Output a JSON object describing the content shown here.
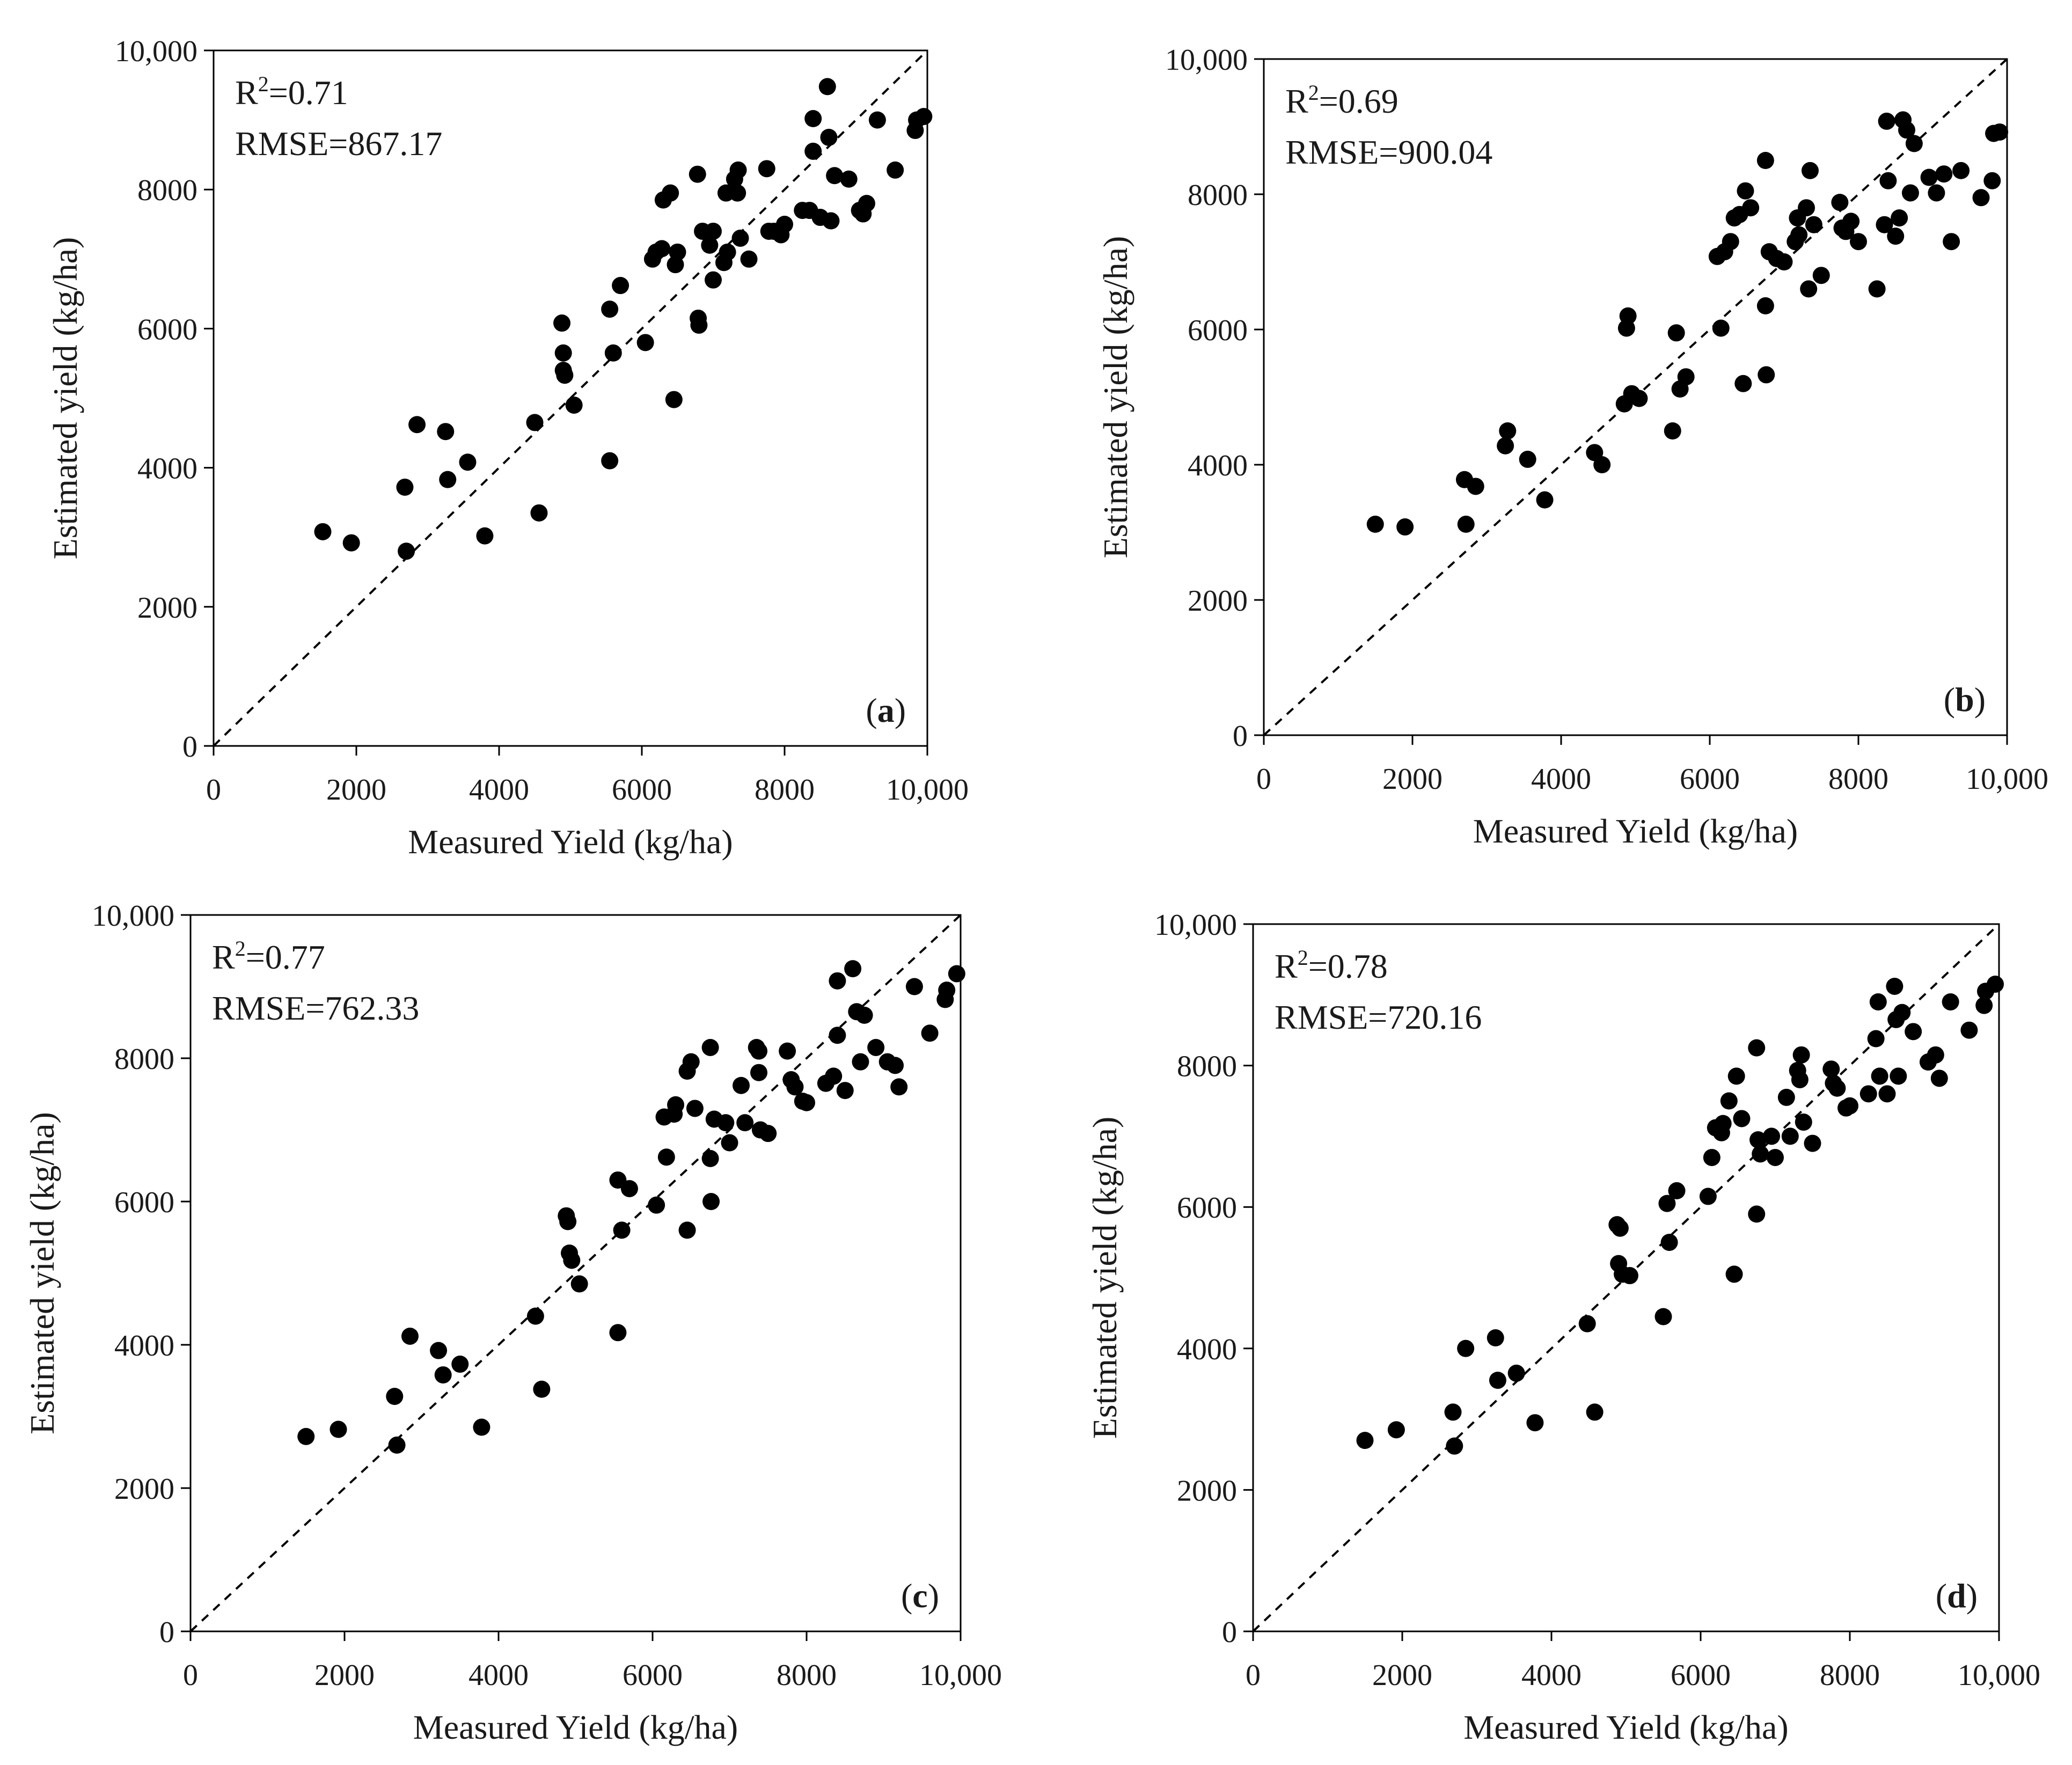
{
  "chart_data": [
    {
      "type": "scatter",
      "panel_label": "a",
      "stats": {
        "r2_prefix": "R",
        "r2_sup": "2",
        "r2_value": "=0.71",
        "rmse": "RMSE=867.17"
      },
      "xlabel": "Measured Yield (kg/ha)",
      "ylabel": "Estimated yield (kg/ha)",
      "xlim": [
        0,
        10000
      ],
      "ylim": [
        0,
        10000
      ],
      "x_ticks": [
        0,
        2000,
        4000,
        6000,
        8000,
        10000
      ],
      "x_tick_labels": [
        "0",
        "2000",
        "4000",
        "6000",
        "8000",
        "10,000"
      ],
      "y_ticks": [
        0,
        2000,
        4000,
        6000,
        8000,
        10000
      ],
      "y_tick_labels": [
        "0",
        "2000",
        "4000",
        "6000",
        "8000",
        "10,000"
      ],
      "reference_line": "1:1 dashed",
      "grid": false,
      "points": [
        [
          1530,
          3080
        ],
        [
          1930,
          2920
        ],
        [
          2680,
          3720
        ],
        [
          2700,
          2800
        ],
        [
          2850,
          4620
        ],
        [
          3250,
          4520
        ],
        [
          3280,
          3830
        ],
        [
          3560,
          4080
        ],
        [
          3800,
          3020
        ],
        [
          4500,
          4650
        ],
        [
          4560,
          3350
        ],
        [
          4880,
          6080
        ],
        [
          4900,
          5650
        ],
        [
          4900,
          5400
        ],
        [
          4920,
          5330
        ],
        [
          5050,
          4900
        ],
        [
          5550,
          6280
        ],
        [
          5550,
          4100
        ],
        [
          5600,
          5650
        ],
        [
          5700,
          6620
        ],
        [
          6050,
          5800
        ],
        [
          6150,
          7000
        ],
        [
          6200,
          7100
        ],
        [
          6280,
          7150
        ],
        [
          6300,
          7850
        ],
        [
          6400,
          7950
        ],
        [
          6450,
          4980
        ],
        [
          6470,
          6920
        ],
        [
          6500,
          7100
        ],
        [
          6780,
          8220
        ],
        [
          6790,
          6150
        ],
        [
          6800,
          6050
        ],
        [
          6850,
          7400
        ],
        [
          6950,
          7200
        ],
        [
          7000,
          7400
        ],
        [
          7000,
          6700
        ],
        [
          7150,
          6950
        ],
        [
          7180,
          7950
        ],
        [
          7200,
          7100
        ],
        [
          7300,
          8150
        ],
        [
          7340,
          7950
        ],
        [
          7350,
          8280
        ],
        [
          7380,
          7300
        ],
        [
          7500,
          7000
        ],
        [
          7750,
          8300
        ],
        [
          7780,
          7400
        ],
        [
          7850,
          7400
        ],
        [
          7950,
          7350
        ],
        [
          8000,
          7500
        ],
        [
          8250,
          7700
        ],
        [
          8350,
          7700
        ],
        [
          8400,
          9020
        ],
        [
          8400,
          8550
        ],
        [
          8500,
          7600
        ],
        [
          8600,
          9480
        ],
        [
          8620,
          8750
        ],
        [
          8650,
          7550
        ],
        [
          8700,
          8200
        ],
        [
          8900,
          8150
        ],
        [
          9050,
          7700
        ],
        [
          9100,
          7650
        ],
        [
          9150,
          7800
        ],
        [
          9300,
          9000
        ],
        [
          9550,
          8280
        ],
        [
          9830,
          8850
        ],
        [
          9850,
          9000
        ],
        [
          9950,
          9050
        ]
      ]
    },
    {
      "type": "scatter",
      "panel_label": "b",
      "stats": {
        "r2_prefix": "R",
        "r2_sup": "2",
        "r2_value": "=0.69",
        "rmse": "RMSE=900.04"
      },
      "xlabel": "Measured Yield (kg/ha)",
      "ylabel": "Estimated yield (kg/ha)",
      "xlim": [
        0,
        10000
      ],
      "ylim": [
        0,
        10000
      ],
      "x_ticks": [
        0,
        2000,
        4000,
        6000,
        8000,
        10000
      ],
      "x_tick_labels": [
        "0",
        "2000",
        "4000",
        "6000",
        "8000",
        "10,000"
      ],
      "y_ticks": [
        0,
        2000,
        4000,
        6000,
        8000,
        10000
      ],
      "y_tick_labels": [
        "0",
        "2000",
        "4000",
        "6000",
        "8000",
        "10,000"
      ],
      "reference_line": "1:1 dashed",
      "grid": false,
      "points": [
        [
          1500,
          3120
        ],
        [
          1900,
          3080
        ],
        [
          2700,
          3780
        ],
        [
          2720,
          3120
        ],
        [
          2850,
          3680
        ],
        [
          3250,
          4280
        ],
        [
          3280,
          4500
        ],
        [
          3550,
          4080
        ],
        [
          3780,
          3480
        ],
        [
          4450,
          4180
        ],
        [
          4550,
          4000
        ],
        [
          4850,
          4900
        ],
        [
          4880,
          6020
        ],
        [
          4900,
          6200
        ],
        [
          4950,
          5050
        ],
        [
          5050,
          4980
        ],
        [
          5500,
          4500
        ],
        [
          5550,
          5950
        ],
        [
          5600,
          5120
        ],
        [
          5680,
          5300
        ],
        [
          6100,
          7080
        ],
        [
          6150,
          6020
        ],
        [
          6200,
          7150
        ],
        [
          6280,
          7300
        ],
        [
          6330,
          7650
        ],
        [
          6400,
          7700
        ],
        [
          6450,
          5200
        ],
        [
          6480,
          8050
        ],
        [
          6550,
          7800
        ],
        [
          6750,
          8500
        ],
        [
          6750,
          6350
        ],
        [
          6760,
          5330
        ],
        [
          6800,
          7150
        ],
        [
          6900,
          7050
        ],
        [
          7000,
          7000
        ],
        [
          7150,
          7300
        ],
        [
          7180,
          7650
        ],
        [
          7200,
          7400
        ],
        [
          7300,
          7800
        ],
        [
          7330,
          6600
        ],
        [
          7350,
          8350
        ],
        [
          7400,
          7550
        ],
        [
          7500,
          6800
        ],
        [
          7750,
          7880
        ],
        [
          7780,
          7500
        ],
        [
          7830,
          7450
        ],
        [
          7900,
          7600
        ],
        [
          8000,
          7300
        ],
        [
          8250,
          6600
        ],
        [
          8350,
          7550
        ],
        [
          8380,
          9080
        ],
        [
          8400,
          8200
        ],
        [
          8500,
          7380
        ],
        [
          8550,
          7650
        ],
        [
          8600,
          9100
        ],
        [
          8650,
          8950
        ],
        [
          8700,
          8020
        ],
        [
          8750,
          8750
        ],
        [
          8950,
          8250
        ],
        [
          9050,
          8020
        ],
        [
          9150,
          8300
        ],
        [
          9250,
          7300
        ],
        [
          9380,
          8350
        ],
        [
          9650,
          7950
        ],
        [
          9800,
          8200
        ],
        [
          9820,
          8900
        ],
        [
          9900,
          8920
        ]
      ]
    },
    {
      "type": "scatter",
      "panel_label": "c",
      "stats": {
        "r2_prefix": "R",
        "r2_sup": "2",
        "r2_value": "=0.77",
        "rmse": "RMSE=762.33"
      },
      "xlabel": "Measured Yield (kg/ha)",
      "ylabel": "Estimated yield (kg/ha)",
      "xlim": [
        0,
        10000
      ],
      "ylim": [
        0,
        10000
      ],
      "x_ticks": [
        0,
        2000,
        4000,
        6000,
        8000,
        10000
      ],
      "x_tick_labels": [
        "0",
        "2000",
        "4000",
        "6000",
        "8000",
        "10,000"
      ],
      "y_ticks": [
        0,
        2000,
        4000,
        6000,
        8000,
        10000
      ],
      "y_tick_labels": [
        "0",
        "2000",
        "4000",
        "6000",
        "8000",
        "10,000"
      ],
      "reference_line": "1:1 dashed",
      "grid": false,
      "points": [
        [
          1500,
          2720
        ],
        [
          1920,
          2820
        ],
        [
          2650,
          3280
        ],
        [
          2680,
          2600
        ],
        [
          2850,
          4120
        ],
        [
          3220,
          3920
        ],
        [
          3280,
          3580
        ],
        [
          3500,
          3730
        ],
        [
          3780,
          2850
        ],
        [
          4480,
          4400
        ],
        [
          4560,
          3380
        ],
        [
          4880,
          5800
        ],
        [
          4900,
          5720
        ],
        [
          4920,
          5280
        ],
        [
          4950,
          5180
        ],
        [
          5050,
          4850
        ],
        [
          5550,
          6300
        ],
        [
          5550,
          4170
        ],
        [
          5600,
          5600
        ],
        [
          5700,
          6180
        ],
        [
          6050,
          5950
        ],
        [
          6150,
          7180
        ],
        [
          6180,
          6620
        ],
        [
          6280,
          7220
        ],
        [
          6300,
          7350
        ],
        [
          6450,
          7820
        ],
        [
          6450,
          5600
        ],
        [
          6500,
          7950
        ],
        [
          6550,
          7300
        ],
        [
          6750,
          8150
        ],
        [
          6750,
          6600
        ],
        [
          6760,
          6000
        ],
        [
          6800,
          7150
        ],
        [
          6950,
          7100
        ],
        [
          7000,
          6820
        ],
        [
          7150,
          7620
        ],
        [
          7200,
          7100
        ],
        [
          7350,
          8150
        ],
        [
          7380,
          8100
        ],
        [
          7380,
          7800
        ],
        [
          7400,
          7000
        ],
        [
          7500,
          6950
        ],
        [
          7750,
          8100
        ],
        [
          7800,
          7700
        ],
        [
          7850,
          7600
        ],
        [
          7950,
          7400
        ],
        [
          8000,
          7380
        ],
        [
          8250,
          7650
        ],
        [
          8350,
          7750
        ],
        [
          8400,
          8320
        ],
        [
          8400,
          9080
        ],
        [
          8500,
          7550
        ],
        [
          8600,
          9250
        ],
        [
          8650,
          8650
        ],
        [
          8700,
          7950
        ],
        [
          8750,
          8600
        ],
        [
          8900,
          8150
        ],
        [
          9050,
          7950
        ],
        [
          9150,
          7900
        ],
        [
          9200,
          7600
        ],
        [
          9400,
          9000
        ],
        [
          9600,
          8350
        ],
        [
          9800,
          8820
        ],
        [
          9820,
          8950
        ],
        [
          9950,
          9180
        ]
      ]
    },
    {
      "type": "scatter",
      "panel_label": "d",
      "stats": {
        "r2_prefix": "R",
        "r2_sup": "2",
        "r2_value": "=0.78",
        "rmse": "RMSE=720.16"
      },
      "xlabel": "Measured Yield (kg/ha)",
      "ylabel": "Estimated yield (kg/ha)",
      "xlim": [
        0,
        10000
      ],
      "ylim": [
        0,
        10000
      ],
      "x_ticks": [
        0,
        2000,
        4000,
        6000,
        8000,
        10000
      ],
      "x_tick_labels": [
        "0",
        "2000",
        "4000",
        "6000",
        "8000",
        "10,000"
      ],
      "y_ticks": [
        0,
        2000,
        4000,
        6000,
        8000,
        10000
      ],
      "y_tick_labels": [
        "0",
        "2000",
        "4000",
        "6000",
        "8000",
        "10,000"
      ],
      "reference_line": "1:1 dashed",
      "grid": false,
      "points": [
        [
          1500,
          2700
        ],
        [
          1920,
          2850
        ],
        [
          2680,
          3100
        ],
        [
          2700,
          2620
        ],
        [
          2850,
          4000
        ],
        [
          3250,
          4150
        ],
        [
          3280,
          3550
        ],
        [
          3530,
          3650
        ],
        [
          3780,
          2950
        ],
        [
          4480,
          4350
        ],
        [
          4580,
          3100
        ],
        [
          4880,
          5750
        ],
        [
          4900,
          5200
        ],
        [
          4920,
          5700
        ],
        [
          4950,
          5050
        ],
        [
          5050,
          5030
        ],
        [
          5500,
          4450
        ],
        [
          5550,
          6050
        ],
        [
          5580,
          5500
        ],
        [
          5680,
          6230
        ],
        [
          6100,
          6150
        ],
        [
          6150,
          6700
        ],
        [
          6200,
          7120
        ],
        [
          6280,
          7050
        ],
        [
          6300,
          7180
        ],
        [
          6380,
          7500
        ],
        [
          6450,
          5050
        ],
        [
          6480,
          7850
        ],
        [
          6550,
          7250
        ],
        [
          6750,
          8250
        ],
        [
          6750,
          5900
        ],
        [
          6770,
          6950
        ],
        [
          6800,
          6750
        ],
        [
          6950,
          7000
        ],
        [
          7000,
          6700
        ],
        [
          7150,
          7550
        ],
        [
          7200,
          7000
        ],
        [
          7300,
          7930
        ],
        [
          7330,
          7800
        ],
        [
          7350,
          8150
        ],
        [
          7380,
          7200
        ],
        [
          7500,
          6900
        ],
        [
          7750,
          7950
        ],
        [
          7780,
          7750
        ],
        [
          7830,
          7680
        ],
        [
          7950,
          7400
        ],
        [
          8000,
          7430
        ],
        [
          8250,
          7600
        ],
        [
          8350,
          8380
        ],
        [
          8380,
          8900
        ],
        [
          8400,
          7850
        ],
        [
          8500,
          7600
        ],
        [
          8600,
          9120
        ],
        [
          8620,
          8650
        ],
        [
          8650,
          7850
        ],
        [
          8700,
          8750
        ],
        [
          8850,
          8480
        ],
        [
          9050,
          8050
        ],
        [
          9150,
          8150
        ],
        [
          9200,
          7820
        ],
        [
          9350,
          8900
        ],
        [
          9600,
          8500
        ],
        [
          9800,
          8850
        ],
        [
          9820,
          9050
        ],
        [
          9950,
          9150
        ]
      ]
    }
  ]
}
